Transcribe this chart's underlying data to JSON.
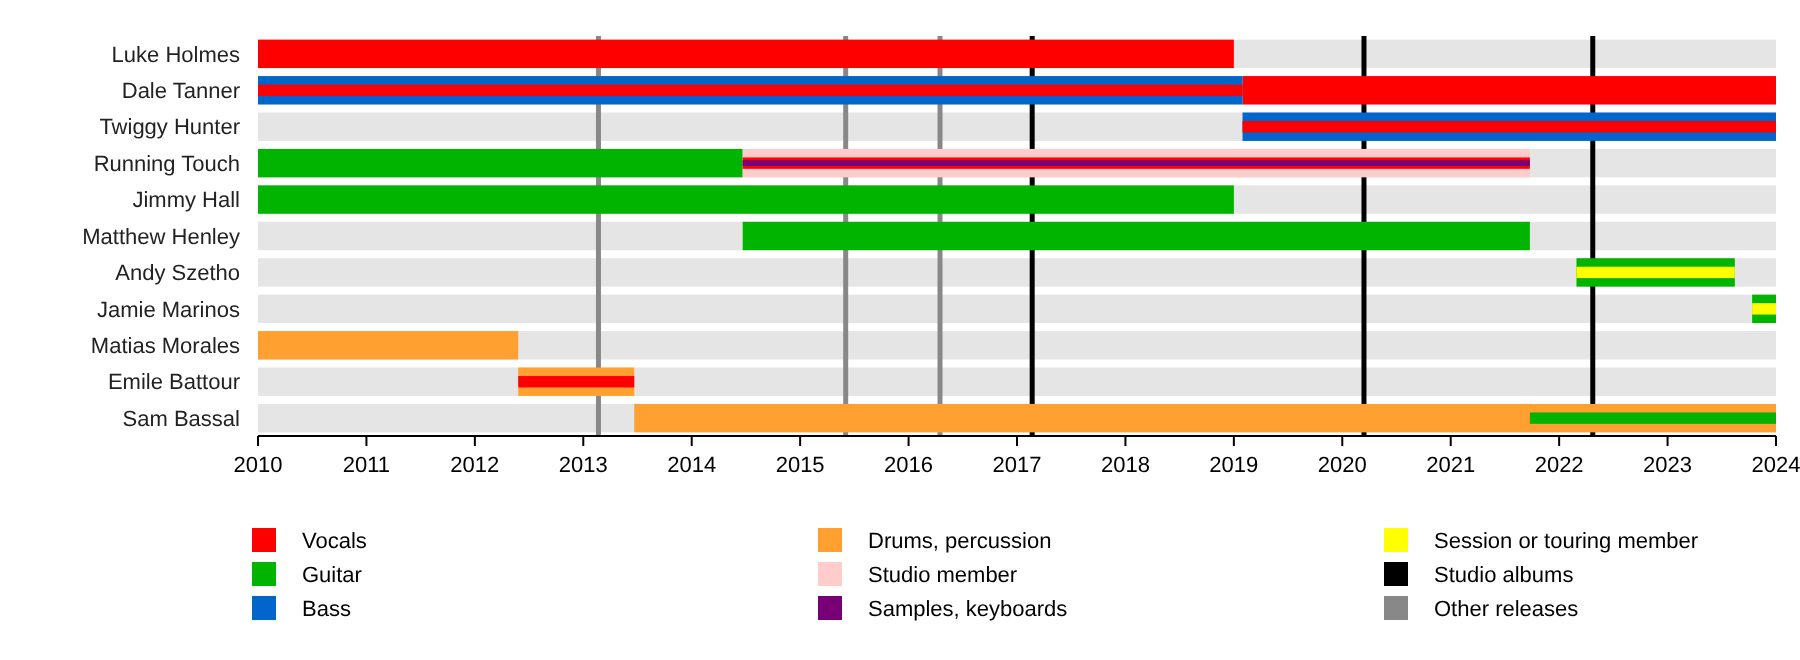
{
  "chart_data": {
    "type": "bar",
    "orientation": "horizontal",
    "legend": "bottom",
    "categories": [
      "Luke Holmes",
      "Dale Tanner",
      "Twiggy Hunter",
      "Running Touch",
      "Jimmy Hall",
      "Matthew Henley",
      "Andy Szetho",
      "Jamie Marinos",
      "Matias Morales",
      "Emile Battour",
      "Sam Bassal"
    ],
    "xlim": [
      2010,
      2024
    ],
    "xticks": [
      2010,
      2011,
      2012,
      2013,
      2014,
      2015,
      2016,
      2017,
      2018,
      2019,
      2020,
      2021,
      2022,
      2023,
      2024
    ],
    "series": [
      {
        "name": "Vocals",
        "color": "#ff0000",
        "base": [
          2010,
          2019.08,
          null,
          null,
          null,
          null,
          null,
          null,
          null,
          null,
          null
        ],
        "values": [
          9,
          4.92,
          null,
          null,
          null,
          null,
          null,
          null,
          null,
          null,
          null
        ]
      },
      {
        "name": "Guitar",
        "color": "#00b400",
        "base": [
          null,
          null,
          null,
          2010,
          2010,
          2014.47,
          2022.16,
          2023.78,
          null,
          null,
          null
        ],
        "values": [
          null,
          null,
          null,
          4.47,
          9,
          7.26,
          1.46,
          0.22,
          null,
          null,
          null
        ]
      },
      {
        "name": "Bass",
        "color": "#0066cc",
        "base": [
          null,
          2010,
          2019.08,
          null,
          null,
          null,
          null,
          null,
          null,
          null,
          null
        ],
        "values": [
          null,
          9.08,
          4.92,
          null,
          null,
          null,
          null,
          null,
          null,
          null,
          null
        ]
      },
      {
        "name": "Drums, percussion",
        "color": "#ffa030",
        "base": [
          null,
          null,
          null,
          null,
          null,
          null,
          null,
          null,
          2010,
          2012.4,
          2013.47
        ],
        "values": [
          null,
          null,
          null,
          null,
          null,
          null,
          null,
          null,
          2.4,
          1.07,
          10.53
        ]
      },
      {
        "name": "Studio member",
        "color": "#ffcccc",
        "base": [
          null,
          null,
          null,
          2014.47,
          null,
          null,
          null,
          null,
          null,
          null,
          null
        ],
        "values": [
          null,
          null,
          null,
          7.26,
          null,
          null,
          null,
          null,
          null,
          null,
          null
        ]
      },
      {
        "color": "#ff0000",
        "base": [
          null,
          2010,
          2019.08,
          2014.47,
          null,
          null,
          null,
          null,
          null,
          2012.4,
          null
        ],
        "values": [
          null,
          9.08,
          4.92,
          7.26,
          null,
          null,
          null,
          null,
          null,
          1.07,
          null
        ]
      },
      {
        "name": "Samples, keyboards",
        "color": "#770077",
        "base": [
          null,
          null,
          null,
          2014.47,
          null,
          null,
          null,
          null,
          null,
          null,
          null
        ],
        "values": [
          null,
          null,
          null,
          7.26,
          null,
          null,
          null,
          null,
          null,
          null,
          null
        ]
      },
      {
        "name": "Session or touring member",
        "color": "#ffff00",
        "base": [
          null,
          null,
          null,
          null,
          null,
          null,
          2022.16,
          2023.78,
          null,
          null,
          null
        ],
        "values": [
          null,
          null,
          null,
          null,
          null,
          null,
          1.46,
          0.22,
          null,
          null,
          null
        ]
      },
      {
        "color": "#00b400",
        "base": [
          null,
          null,
          null,
          null,
          null,
          null,
          null,
          null,
          null,
          null,
          2021.73
        ],
        "values": [
          null,
          null,
          null,
          null,
          null,
          null,
          null,
          null,
          null,
          null,
          2.27
        ]
      }
    ],
    "ref_lines": [
      {
        "axis": "x",
        "value": 2017.14,
        "color": "#000000",
        "label": "Studio albums"
      },
      {
        "axis": "x",
        "value": 2020.2,
        "color": "#000000"
      },
      {
        "axis": "x",
        "value": 2022.31,
        "color": "#000000"
      },
      {
        "axis": "x",
        "value": 2013.14,
        "color": "#888888",
        "label": "Other releases"
      },
      {
        "axis": "x",
        "value": 2015.42,
        "color": "#888888"
      },
      {
        "axis": "x",
        "value": 2016.29,
        "color": "#888888"
      }
    ]
  }
}
